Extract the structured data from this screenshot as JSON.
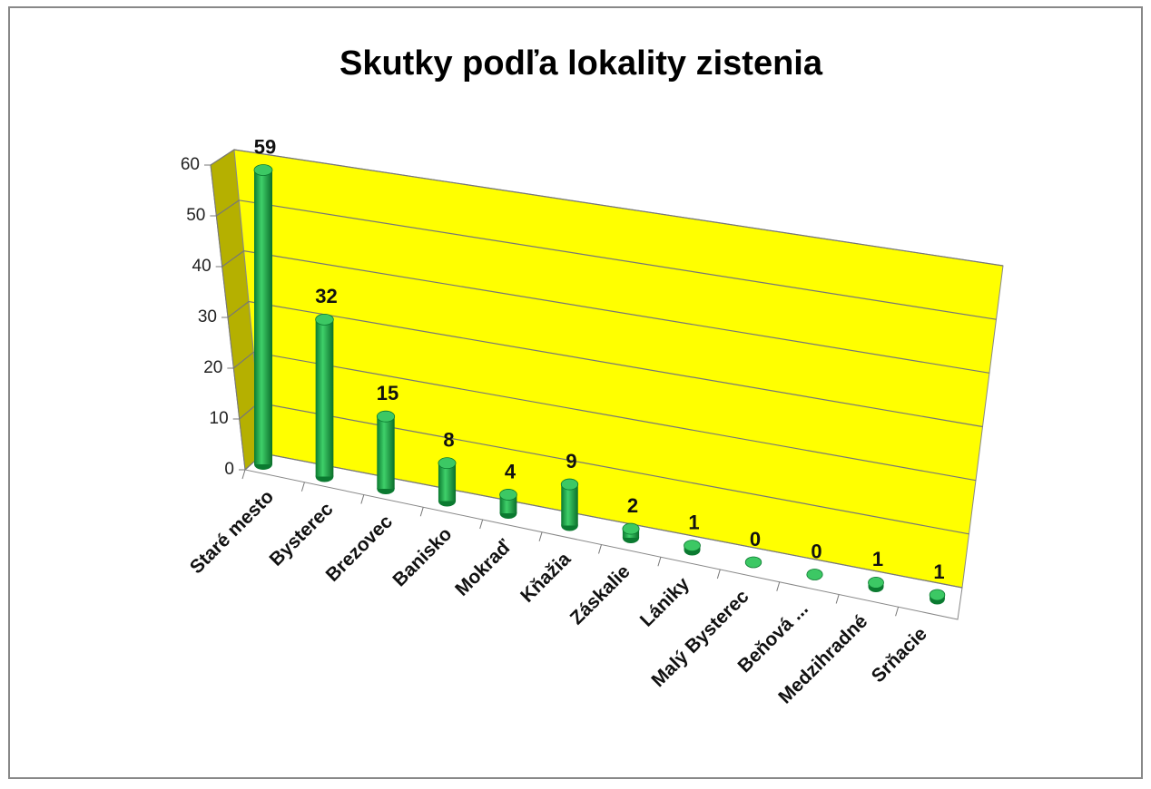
{
  "chart_data": {
    "type": "bar3d",
    "title": "Skutky podľa lokality zistenia",
    "categories": [
      "Staré mesto",
      "Bysterec",
      "Brezovec",
      "Banisko",
      "Mokraď",
      "Kňažia",
      "Záskalie",
      "Lániky",
      "Malý Bysterec",
      "Beňová ...",
      "Medzihradné",
      "Srňacie"
    ],
    "values": [
      59,
      32,
      15,
      8,
      4,
      9,
      2,
      1,
      0,
      0,
      1,
      1
    ],
    "color": "#1fa84a",
    "wall_color": "#ffff00",
    "side_wall_color": "#b5b000",
    "ylim": [
      0,
      60
    ],
    "yticks": [
      0,
      10,
      20,
      30,
      40,
      50,
      60
    ],
    "grid": true
  }
}
